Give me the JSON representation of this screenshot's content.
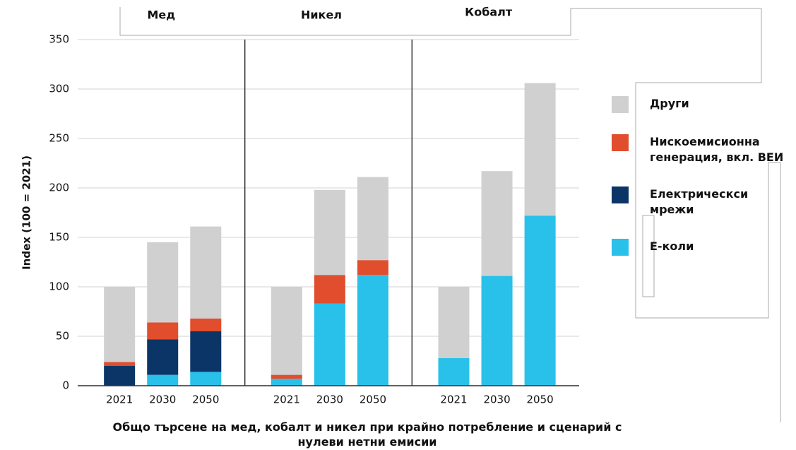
{
  "chart_data": {
    "type": "stacked-bar",
    "title": "Общо търсене на мед, кобалт и никел при крайно потребление и сценарий с нулеви нетни емисии",
    "y_label": "Index (100 = 2021)",
    "groups": [
      "Мед",
      "Никел",
      "Кобалт"
    ],
    "categories": [
      "2021",
      "2030",
      "2050",
      "2021",
      "2030",
      "2050",
      "2021",
      "2030",
      "2050"
    ],
    "series": [
      {
        "name": "Е-коли",
        "color": "#29c0ea",
        "values": [
          0,
          11,
          14,
          7,
          83,
          112,
          28,
          111,
          172
        ]
      },
      {
        "name": "Електрическси мрежи",
        "color": "#0b3566",
        "values": [
          20,
          36,
          41,
          0,
          0,
          0,
          0,
          0,
          0
        ]
      },
      {
        "name": "Нискоемисионна генерация, вкл. ВЕИ",
        "color": "#e04e2e",
        "values": [
          4,
          17,
          13,
          4,
          29,
          15,
          0,
          0,
          0
        ]
      },
      {
        "name": "Други",
        "color": "#d0d0d0",
        "values": [
          76,
          81,
          93,
          89,
          86,
          84,
          72,
          106,
          134
        ]
      }
    ],
    "ylim": [
      0,
      350
    ],
    "yticks": [
      0,
      50,
      100,
      150,
      200,
      250,
      300,
      350
    ],
    "grid": true
  }
}
